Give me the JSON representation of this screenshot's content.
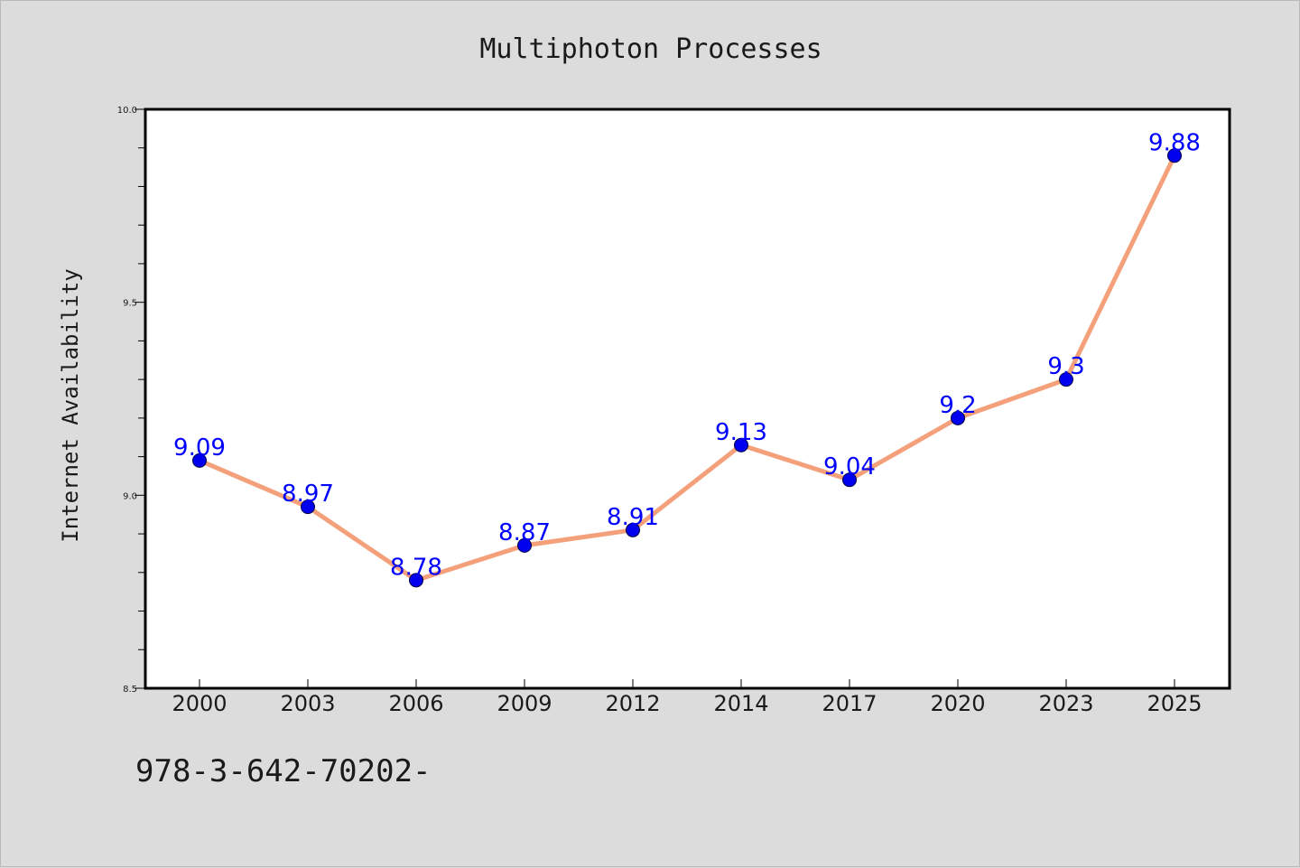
{
  "chart_data": {
    "type": "line",
    "title": "Multiphoton Processes",
    "xlabel": "",
    "ylabel": "Internet Availability",
    "categories": [
      "2000",
      "2003",
      "2006",
      "2009",
      "2012",
      "2014",
      "2017",
      "2020",
      "2023",
      "2025"
    ],
    "series": [
      {
        "values": [
          9.09,
          8.97,
          8.78,
          8.87,
          8.91,
          9.13,
          9.04,
          9.2,
          9.3,
          9.88
        ],
        "data_labels": [
          "9.09",
          "8.97",
          "8.78",
          "8.87",
          "8.91",
          "9.13",
          "9.04",
          "9.2",
          "9.3",
          "9.88"
        ],
        "line_color": "#f4a07a",
        "marker_color": "#0000ee",
        "label_color": "#0000ff"
      }
    ],
    "ylim": [
      8.5,
      10.0
    ],
    "y_major_ticks": [
      8.5,
      9.0,
      9.5,
      10.0
    ],
    "y_tick_labels": [
      "8.5",
      "9.0",
      "9.5",
      "10.0"
    ],
    "y_minor_tick_step": 0.1,
    "grid": false,
    "legend": "none",
    "footer_text": "978-3-642-70202-"
  },
  "colors": {
    "figure_background": "#dcdcdc",
    "plot_background": "#ffffff",
    "axes_edge": "#000000",
    "text": "#1a1a1a"
  }
}
